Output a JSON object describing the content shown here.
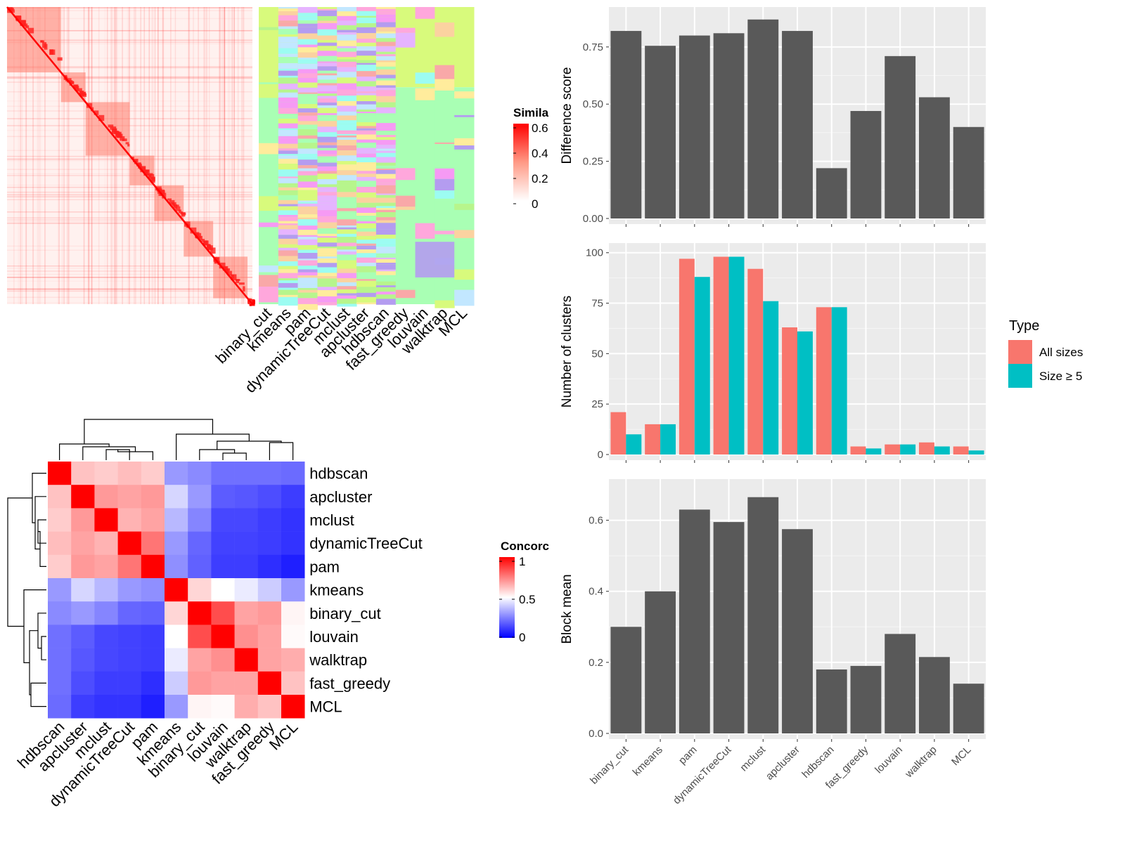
{
  "figure": {
    "similarity_legend_title": "Simila",
    "similarity_ticks": [
      "0.6",
      "0.4",
      "0.2",
      "0"
    ],
    "concordance_legend_title": "Concorc",
    "concordance_ticks": [
      "1",
      "0.5",
      "0"
    ],
    "class_columns": [
      "binary_cut",
      "kmeans",
      "pam",
      "dynamicTreeCut",
      "mclust",
      "apcluster",
      "hdbscan",
      "fast_greedy",
      "louvain",
      "walktrap",
      "MCL"
    ],
    "colors": {
      "bar_grey": "#595959",
      "panel_bg": "#ebebeb",
      "all_sizes": "#F8766D",
      "size_ge_5": "#00BFC4",
      "heat_high": "#ff0000",
      "heat_mid": "#ffffff",
      "heat_low": "#0000ff"
    }
  },
  "chart_data": [
    {
      "type": "heatmap",
      "title": "",
      "legend_title": "Similarity",
      "values_range": [
        0,
        0.6
      ],
      "note": "similarity matrix of terms with diagonal red blocks"
    },
    {
      "type": "heatmap",
      "title": "",
      "legend_title": "Concordance",
      "rows": [
        "hdbscan",
        "apcluster",
        "mclust",
        "dynamicTreeCut",
        "pam",
        "kmeans",
        "binary_cut",
        "louvain",
        "walktrap",
        "fast_greedy",
        "MCL"
      ],
      "columns": [
        "hdbscan",
        "apcluster",
        "mclust",
        "dynamicTreeCut",
        "pam",
        "kmeans",
        "binary_cut",
        "louvain",
        "walktrap",
        "fast_greedy",
        "MCL"
      ],
      "values": [
        [
          1.0,
          0.62,
          0.6,
          0.63,
          0.6,
          0.3,
          0.27,
          0.22,
          0.22,
          0.22,
          0.21
        ],
        [
          0.62,
          1.0,
          0.7,
          0.68,
          0.7,
          0.42,
          0.3,
          0.18,
          0.17,
          0.15,
          0.12
        ],
        [
          0.6,
          0.7,
          1.0,
          0.65,
          0.68,
          0.36,
          0.26,
          0.14,
          0.14,
          0.12,
          0.1
        ],
        [
          0.63,
          0.68,
          0.65,
          1.0,
          0.77,
          0.3,
          0.2,
          0.13,
          0.13,
          0.12,
          0.1
        ],
        [
          0.6,
          0.7,
          0.68,
          0.77,
          1.0,
          0.28,
          0.19,
          0.12,
          0.12,
          0.09,
          0.06
        ],
        [
          0.3,
          0.42,
          0.36,
          0.3,
          0.28,
          1.0,
          0.58,
          0.5,
          0.46,
          0.4,
          0.3
        ],
        [
          0.27,
          0.3,
          0.26,
          0.2,
          0.19,
          0.58,
          1.0,
          0.85,
          0.68,
          0.7,
          0.52
        ],
        [
          0.22,
          0.18,
          0.14,
          0.13,
          0.12,
          0.5,
          0.85,
          1.0,
          0.72,
          0.68,
          0.51
        ],
        [
          0.22,
          0.17,
          0.14,
          0.13,
          0.12,
          0.46,
          0.68,
          0.72,
          1.0,
          0.68,
          0.66
        ],
        [
          0.22,
          0.15,
          0.12,
          0.12,
          0.09,
          0.4,
          0.7,
          0.68,
          0.68,
          1.0,
          0.62
        ],
        [
          0.21,
          0.12,
          0.1,
          0.1,
          0.06,
          0.3,
          0.52,
          0.51,
          0.66,
          0.62,
          1.0
        ]
      ]
    },
    {
      "type": "bar",
      "categories": [
        "binary_cut",
        "kmeans",
        "pam",
        "dynamicTreeCut",
        "mclust",
        "apcluster",
        "hdbscan",
        "fast_greedy",
        "louvain",
        "walktrap",
        "MCL"
      ],
      "values": [
        0.82,
        0.755,
        0.8,
        0.81,
        0.87,
        0.82,
        0.22,
        0.47,
        0.71,
        0.53,
        0.4
      ],
      "ylabel": "Difference score",
      "ylim": [
        0,
        0.9
      ],
      "yticks": [
        "0.00",
        "0.25",
        "0.50",
        "0.75"
      ],
      "grid": true
    },
    {
      "type": "bar",
      "categories": [
        "binary_cut",
        "kmeans",
        "pam",
        "dynamicTreeCut",
        "mclust",
        "apcluster",
        "hdbscan",
        "fast_greedy",
        "louvain",
        "walktrap",
        "MCL"
      ],
      "series": [
        {
          "name": "All sizes",
          "values": [
            21,
            15,
            97,
            98,
            92,
            63,
            73,
            4,
            5,
            6,
            4
          ]
        },
        {
          "name": "Size ≥ 5",
          "values": [
            10,
            15,
            88,
            98,
            76,
            61,
            73,
            3,
            5,
            4,
            2
          ]
        }
      ],
      "ylabel": "Number of clusters",
      "ylim": [
        0,
        102
      ],
      "yticks": [
        "0",
        "25",
        "50",
        "75",
        "100"
      ],
      "legend_title": "Type",
      "legend_position": "right",
      "grid": true
    },
    {
      "type": "bar",
      "categories": [
        "binary_cut",
        "kmeans",
        "pam",
        "dynamicTreeCut",
        "mclust",
        "apcluster",
        "hdbscan",
        "fast_greedy",
        "louvain",
        "walktrap",
        "MCL"
      ],
      "values": [
        0.3,
        0.4,
        0.63,
        0.595,
        0.665,
        0.575,
        0.18,
        0.19,
        0.28,
        0.215,
        0.14
      ],
      "ylabel": "Block mean",
      "ylim": [
        0,
        0.7
      ],
      "yticks": [
        "0.0",
        "0.2",
        "0.4",
        "0.6"
      ],
      "grid": true
    }
  ]
}
